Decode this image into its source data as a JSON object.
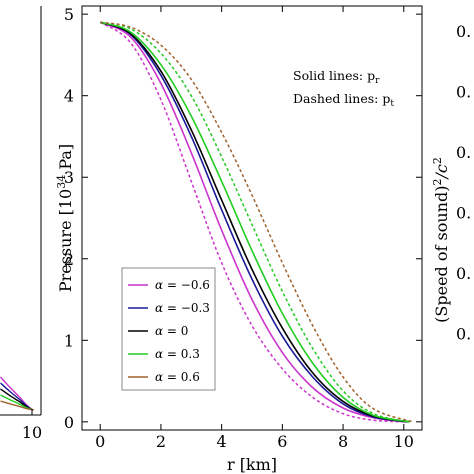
{
  "chart_data": [
    {
      "type": "line",
      "xlabel": "r [km]",
      "ylabel_main": "Pressure [10",
      "ylabel_exp": "34",
      "ylabel_unit": " Pa]",
      "xlim": [
        -0.6,
        10.6
      ],
      "ylim": [
        -0.1,
        5.1
      ],
      "x_ticks": [
        0,
        2,
        4,
        6,
        8,
        10
      ],
      "y_ticks": [
        0,
        1,
        2,
        3,
        4,
        5
      ],
      "grid": false,
      "legend_position": "bottom-left",
      "annotations": {
        "solid_prefix": "Solid lines: p",
        "solid_sub": "r",
        "dashed_prefix": "Dashed lines: p",
        "dashed_sub": "t"
      },
      "legend_symbol": "α",
      "series": [
        {
          "name": "−0.6",
          "color": "#cc33cc",
          "R": 10.05,
          "solid": {
            "x": [
              0,
              1,
              2,
              3,
              4,
              5,
              6,
              7,
              8,
              9,
              10.05
            ],
            "y": [
              4.9,
              4.72,
              4.15,
              3.3,
              2.35,
              1.5,
              0.85,
              0.42,
              0.17,
              0.05,
              0
            ]
          },
          "dashed": {
            "x": [
              0,
              1,
              2,
              3,
              4,
              5,
              6,
              7,
              8,
              9,
              10.05
            ],
            "y": [
              4.9,
              4.65,
              3.95,
              2.95,
              1.95,
              1.18,
              0.65,
              0.3,
              0.1,
              0.02,
              0
            ]
          }
        },
        {
          "name": "−0.3",
          "color": "#1a1a99",
          "R": 10.1,
          "solid": {
            "x": [
              0,
              1,
              2,
              3,
              4,
              5,
              6,
              7,
              8,
              9,
              10.1
            ],
            "y": [
              4.9,
              4.75,
              4.25,
              3.5,
              2.6,
              1.75,
              1.05,
              0.55,
              0.22,
              0.06,
              0
            ]
          }
        },
        {
          "name": "0",
          "color": "#000000",
          "R": 10.15,
          "solid": {
            "x": [
              0,
              1,
              2,
              3,
              4,
              5,
              6,
              7,
              8,
              9,
              10.15
            ],
            "y": [
              4.9,
              4.76,
              4.3,
              3.58,
              2.72,
              1.87,
              1.15,
              0.6,
              0.25,
              0.07,
              0
            ]
          }
        },
        {
          "name": "0.3",
          "color": "#22cc22",
          "R": 10.2,
          "solid": {
            "x": [
              0,
              1,
              2,
              3,
              4,
              5,
              6,
              7,
              8,
              9,
              10.2
            ],
            "y": [
              4.9,
              4.78,
              4.38,
              3.75,
              2.95,
              2.1,
              1.33,
              0.72,
              0.3,
              0.08,
              0
            ]
          },
          "dashed": {
            "x": [
              0,
              1,
              2,
              3,
              4,
              5,
              6,
              7,
              8,
              9,
              10.2
            ],
            "y": [
              4.9,
              4.82,
              4.52,
              4.0,
              3.25,
              2.42,
              1.6,
              0.9,
              0.38,
              0.1,
              0
            ]
          }
        },
        {
          "name": "0.6",
          "color": "#a0622d",
          "R": 10.3,
          "dashed": {
            "x": [
              0,
              1,
              2,
              3,
              4,
              5,
              6,
              7,
              8,
              9,
              10.3
            ],
            "y": [
              4.9,
              4.84,
              4.62,
              4.2,
              3.55,
              2.78,
              1.95,
              1.18,
              0.55,
              0.16,
              0
            ]
          }
        }
      ]
    },
    {
      "type": "line",
      "position": "left",
      "x_ticks_visible": [
        10
      ],
      "lines": [
        {
          "color": "#cc33cc"
        },
        {
          "color": "#1a1a99"
        },
        {
          "color": "#000000"
        },
        {
          "color": "#22cc22"
        },
        {
          "color": "#a0622d"
        }
      ]
    },
    {
      "type": "line",
      "position": "right",
      "ylabel_main": "(Speed of sound)",
      "ylabel_sup1": "2",
      "ylabel_mid": "/c",
      "ylabel_sup2": "2",
      "tick_label_fragment": "0.",
      "tick_count": 6
    }
  ]
}
